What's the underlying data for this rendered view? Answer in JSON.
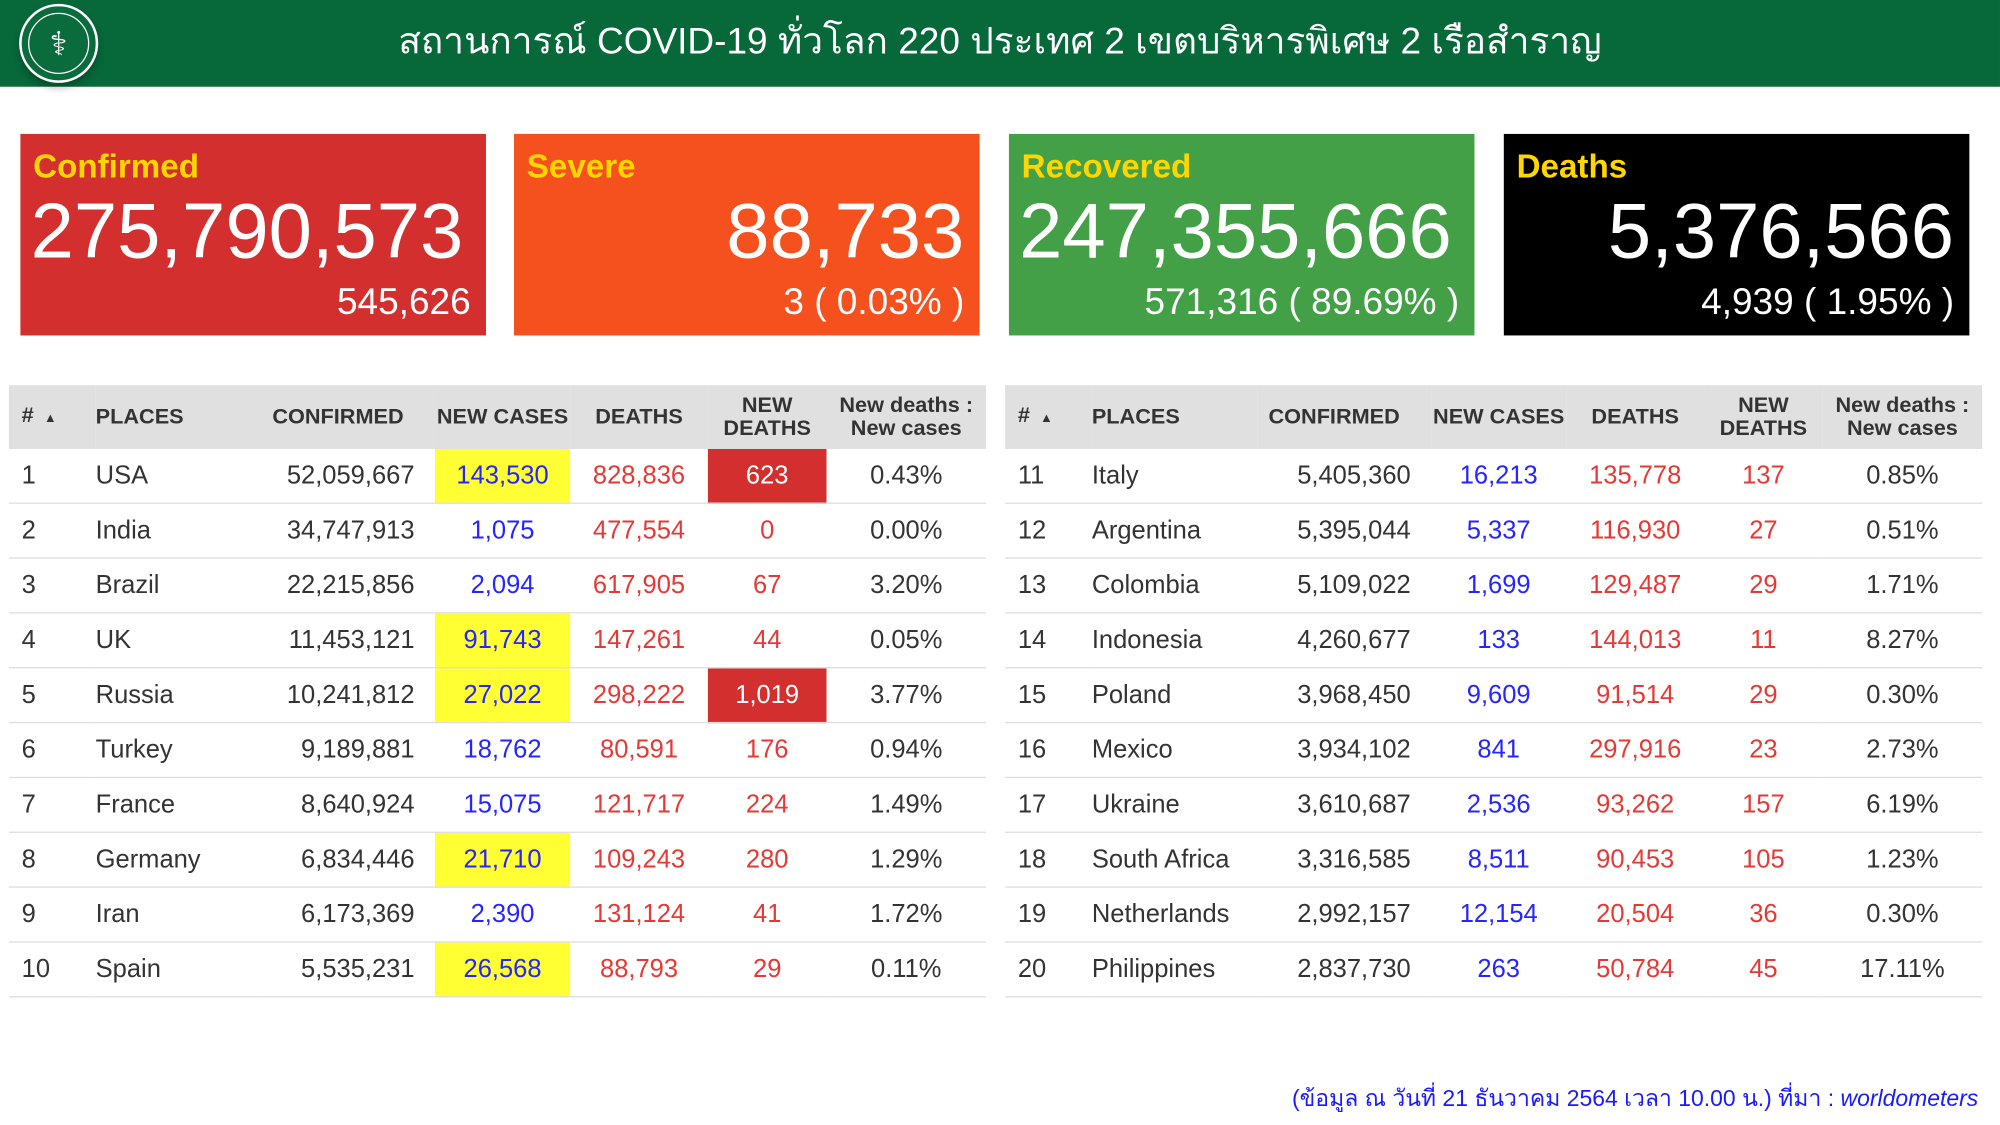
{
  "header": {
    "title": "สถานการณ์ COVID-19 ทั่วโลก 220 ประเทศ 2 เขตบริหารพิเศษ 2 เรือสำราญ",
    "logo_icon": "ministry-of-public-health-logo"
  },
  "cards": [
    {
      "label": "Confirmed",
      "value": "275,790,573",
      "sub": "545,626",
      "color": "#d32f2f"
    },
    {
      "label": "Severe",
      "value": "88,733",
      "sub": "3 ( 0.03% )",
      "color": "#f4511e"
    },
    {
      "label": "Recovered",
      "value": "247,355,666",
      "sub": "571,316 ( 89.69% )",
      "color": "#43a047"
    },
    {
      "label": "Deaths",
      "value": "5,376,566",
      "sub": "4,939 ( 1.95% )",
      "color": "#000000"
    }
  ],
  "table_headers": {
    "left": [
      "#",
      "PLACES",
      "CONFIRMED",
      "NEW CASES",
      "DEATHS",
      "NEW DEATHS",
      "New deaths : New cases"
    ],
    "right": [
      "#",
      "PLACES",
      "CONFIRMED",
      "NEW CASES",
      "DEATHS",
      "NEW DEATHS",
      "New deaths : New cases"
    ]
  },
  "rows_left": [
    {
      "n": "1",
      "place": "USA",
      "confirmed": "52,059,667",
      "new_cases": "143,530",
      "deaths": "828,836",
      "new_deaths": "623",
      "ratio": "0.43%",
      "hl_cases": true,
      "hl_deaths": true
    },
    {
      "n": "2",
      "place": "India",
      "confirmed": "34,747,913",
      "new_cases": "1,075",
      "deaths": "477,554",
      "new_deaths": "0",
      "ratio": "0.00%"
    },
    {
      "n": "3",
      "place": "Brazil",
      "confirmed": "22,215,856",
      "new_cases": "2,094",
      "deaths": "617,905",
      "new_deaths": "67",
      "ratio": "3.20%"
    },
    {
      "n": "4",
      "place": "UK",
      "confirmed": "11,453,121",
      "new_cases": "91,743",
      "deaths": "147,261",
      "new_deaths": "44",
      "ratio": "0.05%",
      "hl_cases": true
    },
    {
      "n": "5",
      "place": "Russia",
      "confirmed": "10,241,812",
      "new_cases": "27,022",
      "deaths": "298,222",
      "new_deaths": "1,019",
      "ratio": "3.77%",
      "hl_cases": true,
      "hl_deaths": true
    },
    {
      "n": "6",
      "place": "Turkey",
      "confirmed": "9,189,881",
      "new_cases": "18,762",
      "deaths": "80,591",
      "new_deaths": "176",
      "ratio": "0.94%"
    },
    {
      "n": "7",
      "place": "France",
      "confirmed": "8,640,924",
      "new_cases": "15,075",
      "deaths": "121,717",
      "new_deaths": "224",
      "ratio": "1.49%"
    },
    {
      "n": "8",
      "place": "Germany",
      "confirmed": "6,834,446",
      "new_cases": "21,710",
      "deaths": "109,243",
      "new_deaths": "280",
      "ratio": "1.29%",
      "hl_cases": true
    },
    {
      "n": "9",
      "place": "Iran",
      "confirmed": "6,173,369",
      "new_cases": "2,390",
      "deaths": "131,124",
      "new_deaths": "41",
      "ratio": "1.72%"
    },
    {
      "n": "10",
      "place": "Spain",
      "confirmed": "5,535,231",
      "new_cases": "26,568",
      "deaths": "88,793",
      "new_deaths": "29",
      "ratio": "0.11%",
      "hl_cases": true
    }
  ],
  "rows_right": [
    {
      "n": "11",
      "place": "Italy",
      "confirmed": "5,405,360",
      "new_cases": "16,213",
      "deaths": "135,778",
      "new_deaths": "137",
      "ratio": "0.85%"
    },
    {
      "n": "12",
      "place": "Argentina",
      "confirmed": "5,395,044",
      "new_cases": "5,337",
      "deaths": "116,930",
      "new_deaths": "27",
      "ratio": "0.51%"
    },
    {
      "n": "13",
      "place": "Colombia",
      "confirmed": "5,109,022",
      "new_cases": "1,699",
      "deaths": "129,487",
      "new_deaths": "29",
      "ratio": "1.71%"
    },
    {
      "n": "14",
      "place": "Indonesia",
      "confirmed": "4,260,677",
      "new_cases": "133",
      "deaths": "144,013",
      "new_deaths": "11",
      "ratio": "8.27%"
    },
    {
      "n": "15",
      "place": "Poland",
      "confirmed": "3,968,450",
      "new_cases": "9,609",
      "deaths": "91,514",
      "new_deaths": "29",
      "ratio": "0.30%"
    },
    {
      "n": "16",
      "place": "Mexico",
      "confirmed": "3,934,102",
      "new_cases": "841",
      "deaths": "297,916",
      "new_deaths": "23",
      "ratio": "2.73%"
    },
    {
      "n": "17",
      "place": "Ukraine",
      "confirmed": "3,610,687",
      "new_cases": "2,536",
      "deaths": "93,262",
      "new_deaths": "157",
      "ratio": "6.19%"
    },
    {
      "n": "18",
      "place": "South Africa",
      "confirmed": "3,316,585",
      "new_cases": "8,511",
      "deaths": "90,453",
      "new_deaths": "105",
      "ratio": "1.23%"
    },
    {
      "n": "19",
      "place": "Netherlands",
      "confirmed": "2,992,157",
      "new_cases": "12,154",
      "deaths": "20,504",
      "new_deaths": "36",
      "ratio": "0.30%"
    },
    {
      "n": "20",
      "place": "Philippines",
      "confirmed": "2,837,730",
      "new_cases": "263",
      "deaths": "50,784",
      "new_deaths": "45",
      "ratio": "17.11%"
    }
  ],
  "footer": {
    "text": "(ข้อมูล ณ วันที่ 21 ธันวาคม 2564 เวลา 10.00 น.) ที่มา : ",
    "source": "worldometers"
  },
  "colors": {
    "header_bg": "#07683a",
    "label_yellow": "#ffd600",
    "new_cases_blue": "#2525ff",
    "deaths_red": "#e53935",
    "highlight_yellow": "#ffff33",
    "highlight_red": "#d32f2f"
  }
}
